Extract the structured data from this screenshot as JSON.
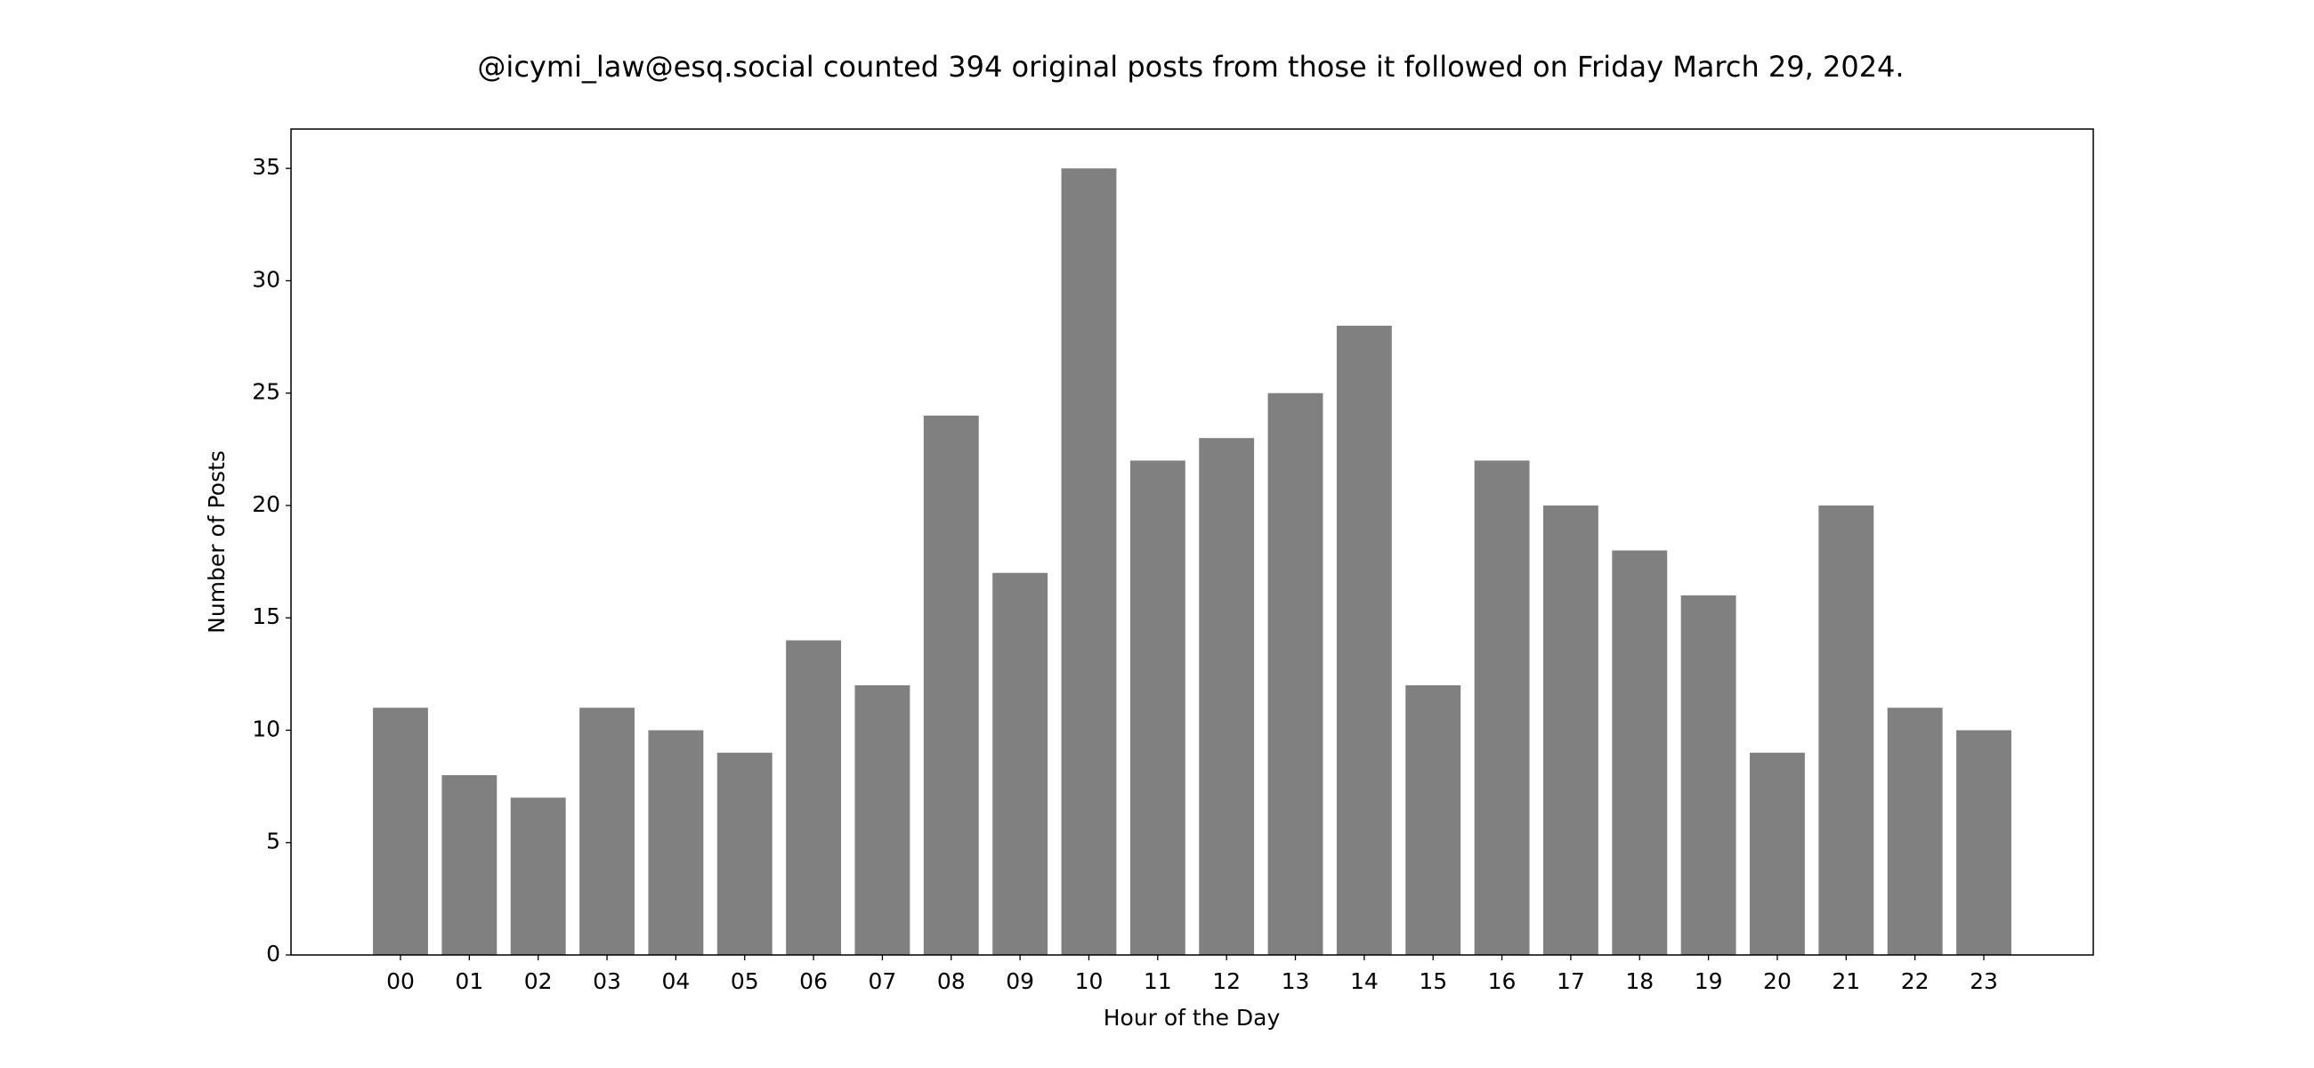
{
  "chart_data": {
    "type": "bar",
    "title": "@icymi_law@esq.social counted 394 original posts from those it followed on Friday March 29, 2024.",
    "xlabel": "Hour of the Day",
    "ylabel": "Number of Posts",
    "categories": [
      "00",
      "01",
      "02",
      "03",
      "04",
      "05",
      "06",
      "07",
      "08",
      "09",
      "10",
      "11",
      "12",
      "13",
      "14",
      "15",
      "16",
      "17",
      "18",
      "19",
      "20",
      "21",
      "22",
      "23"
    ],
    "values": [
      11,
      8,
      7,
      11,
      10,
      9,
      14,
      12,
      24,
      17,
      35,
      22,
      23,
      25,
      28,
      12,
      22,
      20,
      18,
      16,
      9,
      20,
      11,
      10
    ],
    "color": "#808080",
    "ylim": [
      0,
      36.75
    ],
    "yticks": [
      0,
      5,
      10,
      15,
      20,
      25,
      30,
      35
    ],
    "grid": false
  }
}
